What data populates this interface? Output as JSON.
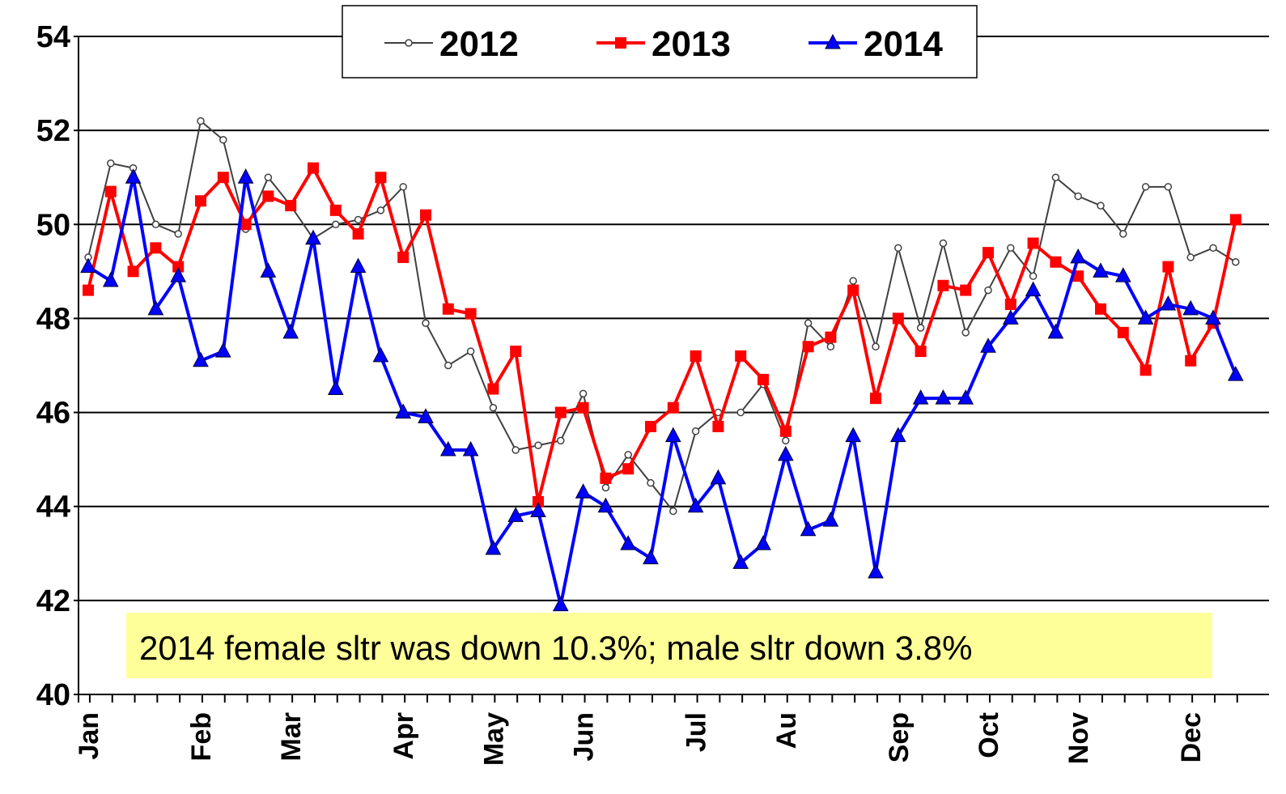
{
  "chart_data": {
    "type": "line",
    "annotation": "2014 female sltr was down 10.3%; male sltr down 3.8%",
    "categories": [
      "Jan",
      null,
      null,
      null,
      null,
      "Feb",
      null,
      null,
      null,
      "Mar",
      null,
      null,
      null,
      null,
      "Apr",
      null,
      null,
      null,
      "May",
      null,
      null,
      null,
      "Jun",
      null,
      null,
      null,
      null,
      "Jul",
      null,
      null,
      null,
      "Au",
      null,
      null,
      null,
      null,
      "Sep",
      null,
      null,
      null,
      "Oct",
      null,
      null,
      null,
      "Nov",
      null,
      null,
      null,
      null,
      "Dec",
      null,
      null
    ],
    "ylim": [
      40,
      54
    ],
    "yticks": [
      40,
      42,
      44,
      46,
      48,
      50,
      52,
      54
    ],
    "grid": true,
    "legend": "top",
    "series": [
      {
        "name": "2012",
        "color": "#404040",
        "marker": "circle",
        "values": [
          49.3,
          51.3,
          51.2,
          50.0,
          49.8,
          52.2,
          51.8,
          49.9,
          51.0,
          50.4,
          49.7,
          50.0,
          50.1,
          50.3,
          50.8,
          47.9,
          47.0,
          47.3,
          46.1,
          45.2,
          45.3,
          45.4,
          46.4,
          44.4,
          45.1,
          44.5,
          43.9,
          45.6,
          46.0,
          46.0,
          46.6,
          45.4,
          47.9,
          47.4,
          48.8,
          47.4,
          49.5,
          47.8,
          49.6,
          47.7,
          48.6,
          49.5,
          48.9,
          51.0,
          50.6,
          50.4,
          49.8,
          50.8,
          50.8,
          49.3,
          49.5,
          49.2
        ]
      },
      {
        "name": "2013",
        "color": "#ff0000",
        "marker": "square",
        "values": [
          48.6,
          50.7,
          49.0,
          49.5,
          49.1,
          50.5,
          51.0,
          50.0,
          50.6,
          50.4,
          51.2,
          50.3,
          49.8,
          51.0,
          49.3,
          50.2,
          48.2,
          48.1,
          46.5,
          47.3,
          44.1,
          46.0,
          46.1,
          44.6,
          44.8,
          45.7,
          46.1,
          47.2,
          45.7,
          47.2,
          46.7,
          45.6,
          47.4,
          47.6,
          48.6,
          46.3,
          48.0,
          47.3,
          48.7,
          48.6,
          49.4,
          48.3,
          49.6,
          49.2,
          48.9,
          48.2,
          47.7,
          46.9,
          49.1,
          47.1,
          47.9,
          50.1
        ]
      },
      {
        "name": "2014",
        "color": "#0000ff",
        "marker": "triangle",
        "values": [
          49.1,
          48.8,
          51.0,
          48.2,
          48.9,
          47.1,
          47.3,
          51.0,
          49.0,
          47.7,
          49.7,
          46.5,
          49.1,
          47.2,
          46.0,
          45.9,
          45.2,
          45.2,
          43.1,
          43.8,
          43.9,
          41.9,
          44.3,
          44.0,
          43.2,
          42.9,
          45.5,
          44.0,
          44.6,
          42.8,
          43.2,
          45.1,
          43.5,
          43.7,
          45.5,
          42.6,
          45.5,
          46.3,
          46.3,
          46.3,
          47.4,
          48.0,
          48.6,
          47.7,
          49.3,
          49.0,
          48.9,
          48.0,
          48.3,
          48.2,
          48.0,
          46.8
        ]
      }
    ]
  }
}
